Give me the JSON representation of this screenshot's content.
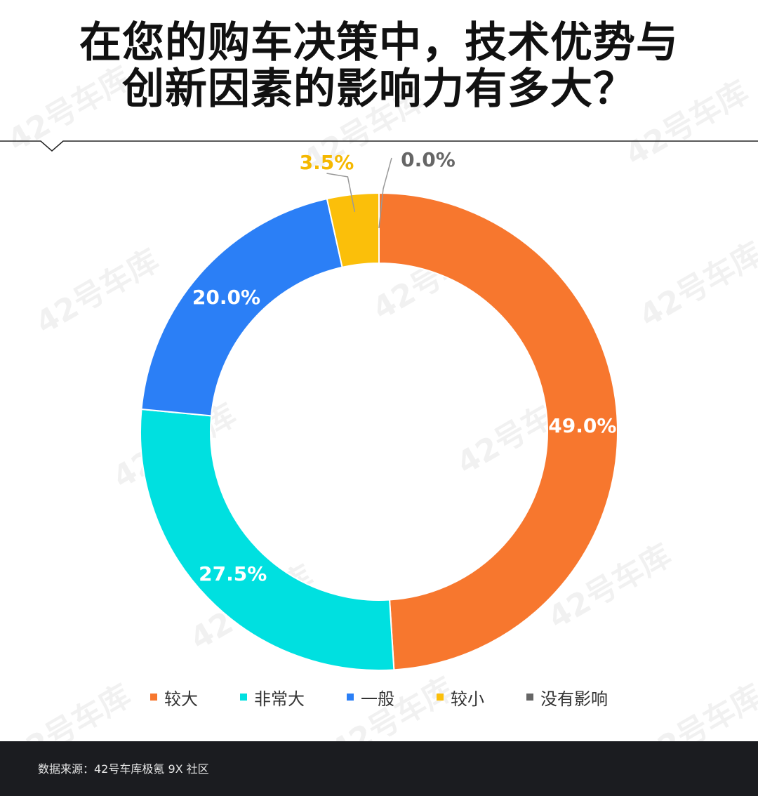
{
  "title": {
    "line1": "在您的购车决策中，技术优势与",
    "line2": "创新因素的影响力有多大？"
  },
  "chart_data": {
    "type": "pie",
    "donut": true,
    "categories": [
      "较大",
      "非常大",
      "一般",
      "较小",
      "没有影响"
    ],
    "values": [
      49.0,
      27.5,
      20.0,
      3.5,
      0.0
    ],
    "value_labels": [
      "49.0%",
      "27.5%",
      "20.0%",
      "3.5%",
      "0.0%"
    ],
    "colors": [
      "#f7772e",
      "#00e0e0",
      "#2b7ff6",
      "#fbbf0a",
      "#666666"
    ],
    "label_colors": [
      "#ffffff",
      "#ffffff",
      "#ffffff",
      "#f5b800",
      "#666666"
    ],
    "legend_position": "bottom",
    "start": "top",
    "direction": "clockwise"
  },
  "footer": {
    "source": "数据来源：42号车库极氪 9X 社区"
  },
  "watermark": "42号车库"
}
